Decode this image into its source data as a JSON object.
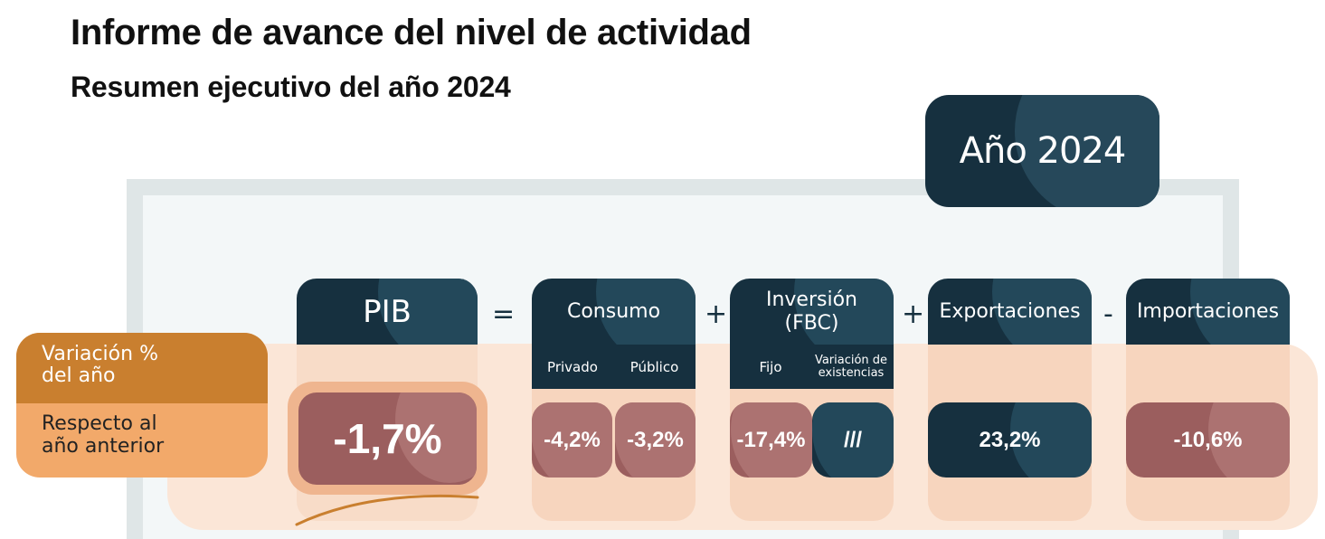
{
  "header": {
    "title": "Informe de avance del nivel de actividad",
    "subtitle": "Resumen ejecutivo del año 2024"
  },
  "period": {
    "label": "Año 2024"
  },
  "row_label": {
    "top": "Variación %\ndel año",
    "bottom": "Respecto al\naño anterior"
  },
  "operators": [
    "=",
    "+",
    "+",
    "-"
  ],
  "components": {
    "pib": {
      "label": "PIB",
      "value": "-1,7%"
    },
    "consumo": {
      "label": "Consumo",
      "privado": {
        "label": "Privado",
        "value": "-4,2%"
      },
      "publico": {
        "label": "Público",
        "value": "-3,2%"
      }
    },
    "inversion": {
      "label": "Inversión\n(FBC)",
      "fijo": {
        "label": "Fijo",
        "value": "-17,4%"
      },
      "existencias": {
        "label": "Variación de\nexistencias",
        "value": "///"
      }
    },
    "exportaciones": {
      "label": "Exportaciones",
      "value": "23,2%"
    },
    "importaciones": {
      "label": "Importaciones",
      "value": "-10,6%"
    }
  },
  "colors": {
    "dark_teal": "#16303f",
    "negative": "#9b5e5e",
    "orange": "#c97f2f",
    "light_orange": "#f2a96a",
    "band": "#fbe6d7"
  }
}
